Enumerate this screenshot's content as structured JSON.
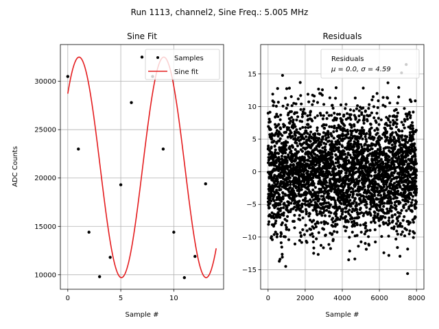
{
  "suptitle": "Run 1113, channel2, Sine Freq.: 5.005 MHz",
  "chart_data": [
    {
      "type": "line",
      "title": "Sine Fit",
      "xlabel": "Sample #",
      "ylabel": "ADC Counts",
      "xlim": [
        -0.7,
        14.7
      ],
      "ylim": [
        8500,
        33800
      ],
      "xticks": [
        0,
        5,
        10
      ],
      "yticks": [
        10000,
        15000,
        20000,
        25000,
        30000
      ],
      "grid": true,
      "legend_position": "upper right",
      "series": [
        {
          "name": "Samples",
          "style": "scatter",
          "color": "#000000",
          "x": [
            0,
            1,
            2,
            3,
            4,
            5,
            6,
            7,
            8,
            9,
            10,
            11,
            12,
            13
          ],
          "y": [
            30500,
            23000,
            14400,
            9800,
            11800,
            19300,
            27800,
            32500,
            30500,
            23000,
            14400,
            9700,
            11900,
            19400
          ]
        },
        {
          "name": "Sine fit",
          "style": "line",
          "color": "#e41a1c",
          "fit": {
            "amplitude": 11400,
            "offset": 21100,
            "period_samples": 7.99,
            "phase_rad": 0.838,
            "x_range": [
              0,
              14
            ]
          }
        }
      ]
    },
    {
      "type": "scatter",
      "title": "Residuals",
      "xlabel": "Sample #",
      "xlim": [
        -400,
        8400
      ],
      "ylim": [
        -18,
        19.5
      ],
      "xticks": [
        0,
        2000,
        4000,
        6000,
        8000
      ],
      "yticks": [
        -15,
        -10,
        -5,
        0,
        5,
        10,
        15
      ],
      "grid": true,
      "legend_position": "upper right",
      "series": [
        {
          "name": "Residuals",
          "color": "#000000",
          "n_points": 8000,
          "mean": 0.0,
          "std": 4.59
        }
      ],
      "legend_stats": "$\\mu$ = 0.0, $\\sigma$ = 4.59",
      "legend_stats_display": "μ = 0.0, σ = 4.59"
    }
  ]
}
